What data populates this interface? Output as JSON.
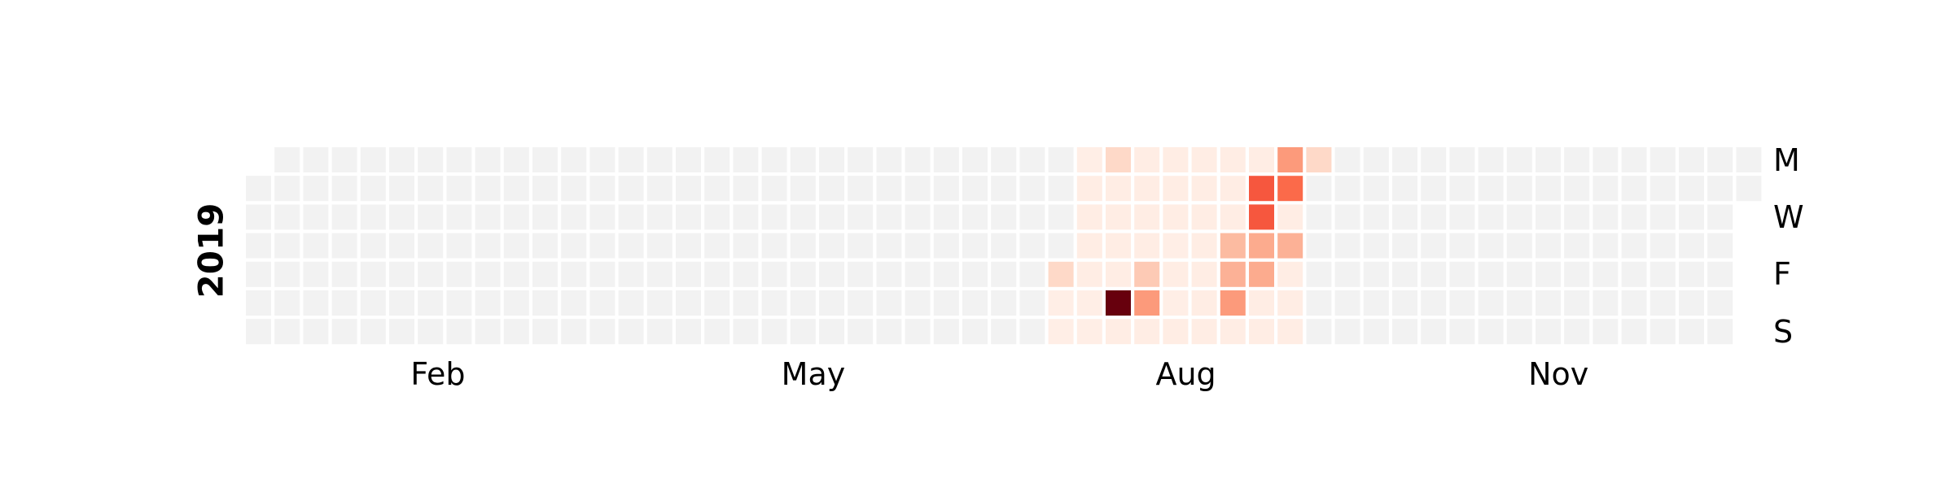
{
  "chart_data": {
    "type": "heatmap",
    "title": "",
    "year_label": "2019",
    "day_labels": [
      {
        "label": "M",
        "row": 0
      },
      {
        "label": "W",
        "row": 2
      },
      {
        "label": "F",
        "row": 4
      },
      {
        "label": "S",
        "row": 6
      }
    ],
    "month_labels": [
      {
        "label": "Feb",
        "week": 6.7
      },
      {
        "label": "May",
        "week": 19.8
      },
      {
        "label": "Aug",
        "week": 32.8
      },
      {
        "label": "Nov",
        "week": 45.8
      }
    ],
    "weeks": 53,
    "year_start_weekday": 1,
    "year_days": 365,
    "empty_color": "#f2f2f2",
    "colormap": "Reds",
    "value_range": [
      0,
      100
    ],
    "nonzero_cells": [
      [
        28,
        4,
        15
      ],
      [
        28,
        5,
        4
      ],
      [
        28,
        6,
        4
      ],
      [
        29,
        0,
        4
      ],
      [
        29,
        1,
        5
      ],
      [
        29,
        2,
        5
      ],
      [
        29,
        3,
        5
      ],
      [
        29,
        4,
        5
      ],
      [
        29,
        5,
        4
      ],
      [
        29,
        6,
        4
      ],
      [
        30,
        0,
        15
      ],
      [
        30,
        1,
        5
      ],
      [
        30,
        2,
        5
      ],
      [
        30,
        3,
        5
      ],
      [
        30,
        4,
        5
      ],
      [
        30,
        5,
        100
      ],
      [
        30,
        6,
        5
      ],
      [
        31,
        0,
        5
      ],
      [
        31,
        1,
        5
      ],
      [
        31,
        2,
        5
      ],
      [
        31,
        3,
        5
      ],
      [
        31,
        4,
        20
      ],
      [
        31,
        5,
        35
      ],
      [
        31,
        6,
        5
      ],
      [
        32,
        0,
        5
      ],
      [
        32,
        1,
        5
      ],
      [
        32,
        2,
        5
      ],
      [
        32,
        3,
        4
      ],
      [
        32,
        4,
        5
      ],
      [
        32,
        5,
        4
      ],
      [
        32,
        6,
        5
      ],
      [
        33,
        0,
        5
      ],
      [
        33,
        1,
        5
      ],
      [
        33,
        2,
        5
      ],
      [
        33,
        3,
        5
      ],
      [
        33,
        4,
        5
      ],
      [
        33,
        5,
        5
      ],
      [
        33,
        6,
        5
      ],
      [
        34,
        0,
        5
      ],
      [
        34,
        1,
        5
      ],
      [
        34,
        2,
        5
      ],
      [
        34,
        3,
        25
      ],
      [
        34,
        4,
        28
      ],
      [
        34,
        5,
        35
      ],
      [
        34,
        6,
        5
      ],
      [
        35,
        0,
        5
      ],
      [
        35,
        1,
        55
      ],
      [
        35,
        2,
        55
      ],
      [
        35,
        3,
        30
      ],
      [
        35,
        4,
        30
      ],
      [
        35,
        5,
        5
      ],
      [
        35,
        6,
        5
      ],
      [
        36,
        0,
        35
      ],
      [
        36,
        1,
        50
      ],
      [
        36,
        2,
        5
      ],
      [
        36,
        3,
        28
      ],
      [
        36,
        4,
        5
      ],
      [
        36,
        5,
        5
      ],
      [
        36,
        6,
        5
      ],
      [
        37,
        0,
        15
      ]
    ]
  }
}
